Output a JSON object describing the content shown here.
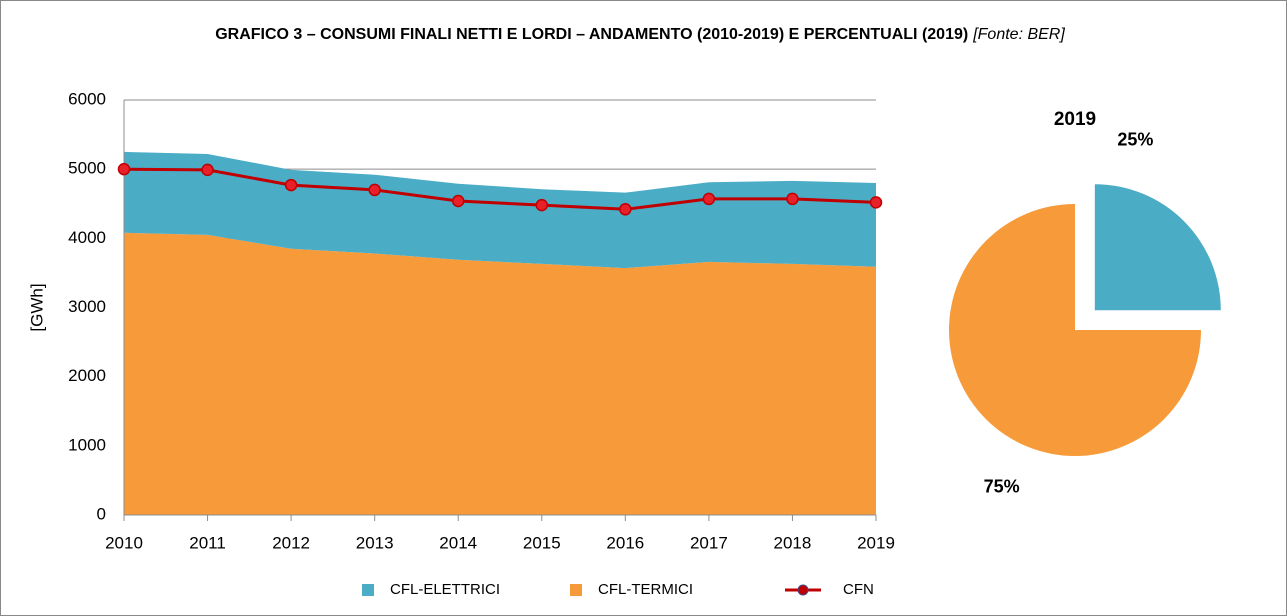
{
  "title": "GRAFICO 3 – CONSUMI FINALI NETTI E LORDI – ANDAMENTO (2010-2019) E PERCENTUALI (2019)",
  "source": "[Fonte: BER]",
  "chart_data": [
    {
      "type": "area_line",
      "ylabel": "[GWh]",
      "categories": [
        "2010",
        "2011",
        "2012",
        "2013",
        "2014",
        "2015",
        "2016",
        "2017",
        "2018",
        "2019"
      ],
      "stacked": true,
      "series": [
        {
          "name": "CFL-ELETTRICI",
          "color": "#4bacc6",
          "kind": "area",
          "values": [
            1170,
            1170,
            1140,
            1140,
            1100,
            1080,
            1090,
            1150,
            1200,
            1210
          ]
        },
        {
          "name": "CFL-TERMICI",
          "color": "#f79a3a",
          "kind": "area",
          "values": [
            4080,
            4050,
            3850,
            3780,
            3690,
            3630,
            3570,
            3660,
            3630,
            3590
          ]
        },
        {
          "name": "CFN",
          "color": "#e8202a",
          "marker_color": "#c00000",
          "kind": "line",
          "values": [
            5000,
            4990,
            4770,
            4700,
            4540,
            4480,
            4420,
            4570,
            4570,
            4520
          ]
        }
      ],
      "ylim": [
        0,
        6000
      ],
      "yticks": [
        0,
        1000,
        2000,
        3000,
        4000,
        5000,
        6000
      ],
      "grid": true
    },
    {
      "type": "pie",
      "title": "2019",
      "values": [
        25,
        75
      ],
      "value_labels": [
        "25%",
        "75%"
      ],
      "colors": [
        "#4bacc6",
        "#f79a3a"
      ],
      "explode": [
        true,
        false
      ]
    }
  ]
}
